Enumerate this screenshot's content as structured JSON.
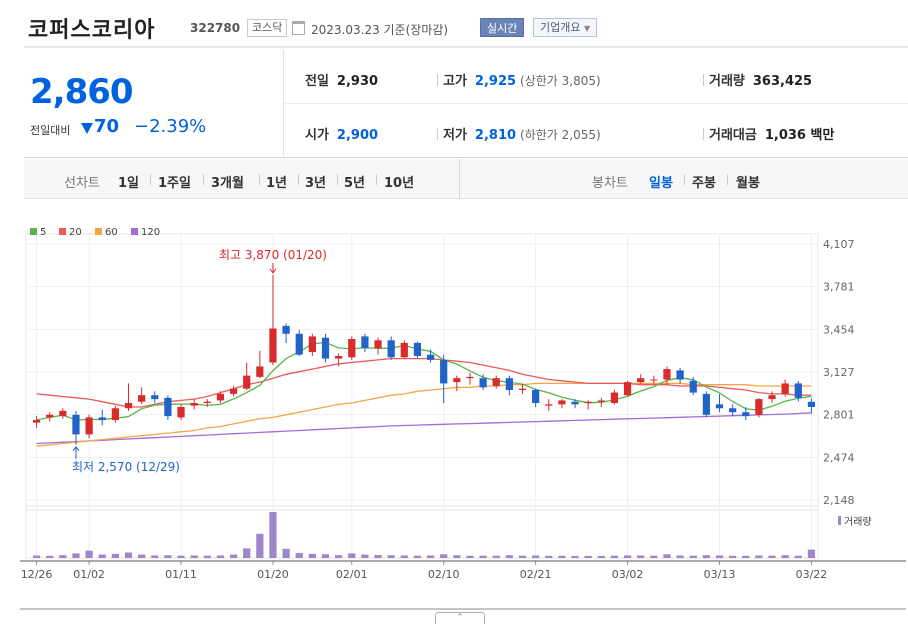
{
  "header": {
    "company": "코퍼스코리아",
    "code": "322780",
    "market": "코스닥",
    "date_text": "2023.03.23 기준(장마감)",
    "realtime_label": "실시간",
    "company_info_label": "기업개요"
  },
  "summary": {
    "price": "2,860",
    "change_label": "전일대비",
    "change_amount": "70",
    "change_percent": "−2.39%",
    "prev_close_label": "전일",
    "prev_close": "2,930",
    "open_label": "시가",
    "open": "2,900",
    "high_label": "고가",
    "high": "2,925",
    "upper_limit": "(상한가 3,805)",
    "low_label": "저가",
    "low": "2,810",
    "lower_limit": "(하한가 2,055)",
    "volume_label": "거래량",
    "volume": "363,425",
    "amount_label": "거래대금",
    "amount": "1,036 백만"
  },
  "period_bar": {
    "line_label": "선차트",
    "line_options": [
      "1일",
      "1주일",
      "3개월",
      "1년",
      "3년",
      "5년",
      "10년"
    ],
    "candle_label": "봉차트",
    "candle_options": [
      "일봉",
      "주봉",
      "월봉"
    ],
    "candle_active": "일봉"
  },
  "colors": {
    "up": "#d92b2b",
    "down": "#2064c9",
    "ma5": "#56b64a",
    "ma20": "#ea5a5a",
    "ma60": "#f5a64a",
    "ma120": "#a36cd9",
    "volume": "#9e86c8"
  },
  "chart_data": {
    "type": "candlestick",
    "legend": [
      {
        "name": "5",
        "color": "#56b64a"
      },
      {
        "name": "20",
        "color": "#ea5a5a"
      },
      {
        "name": "60",
        "color": "#f5a64a"
      },
      {
        "name": "120",
        "color": "#a36cd9"
      }
    ],
    "y_ticks": [
      "4,107",
      "3,781",
      "3,454",
      "3,127",
      "2,801",
      "2,474",
      "2,148"
    ],
    "y_range": [
      2148,
      4107
    ],
    "x_ticks": [
      {
        "label": "12/26",
        "index": 0
      },
      {
        "label": "01/02",
        "index": 4
      },
      {
        "label": "01/11",
        "index": 11
      },
      {
        "label": "01/20",
        "index": 18
      },
      {
        "label": "02/01",
        "index": 24
      },
      {
        "label": "02/10",
        "index": 31
      },
      {
        "label": "02/21",
        "index": 38
      },
      {
        "label": "03/02",
        "index": 45
      },
      {
        "label": "03/13",
        "index": 52
      },
      {
        "label": "03/22",
        "index": 59
      }
    ],
    "annotations": {
      "high_text": "최고 3,870 (01/20)",
      "high_index": 18,
      "high_value": 3870,
      "low_text": "최저 2,570 (12/29)",
      "low_index": 3,
      "low_value": 2570
    },
    "volume_label": "거래량",
    "candles": [
      [
        2740,
        2790,
        2700,
        2760,
        110000
      ],
      [
        2780,
        2820,
        2750,
        2800,
        95000
      ],
      [
        2790,
        2850,
        2770,
        2830,
        120000
      ],
      [
        2800,
        2830,
        2570,
        2650,
        200000
      ],
      [
        2650,
        2800,
        2620,
        2780,
        320000
      ],
      [
        2780,
        2840,
        2720,
        2760,
        150000
      ],
      [
        2760,
        2870,
        2740,
        2850,
        180000
      ],
      [
        2850,
        3040,
        2830,
        2890,
        240000
      ],
      [
        2900,
        3010,
        2880,
        2950,
        150000
      ],
      [
        2950,
        2980,
        2890,
        2920,
        110000
      ],
      [
        2930,
        2950,
        2760,
        2790,
        120000
      ],
      [
        2780,
        2880,
        2760,
        2860,
        100000
      ],
      [
        2870,
        2920,
        2840,
        2890,
        110000
      ],
      [
        2890,
        2920,
        2860,
        2900,
        100000
      ],
      [
        2910,
        2980,
        2890,
        2960,
        110000
      ],
      [
        2960,
        3020,
        2940,
        3000,
        150000
      ],
      [
        3000,
        3200,
        2990,
        3100,
        420000
      ],
      [
        3090,
        3290,
        3080,
        3170,
        1050000
      ],
      [
        3200,
        3870,
        3180,
        3460,
        2000000
      ],
      [
        3480,
        3500,
        3350,
        3420,
        400000
      ],
      [
        3420,
        3450,
        3250,
        3260,
        220000
      ],
      [
        3280,
        3420,
        3250,
        3400,
        180000
      ],
      [
        3390,
        3420,
        3200,
        3230,
        160000
      ],
      [
        3230,
        3270,
        3170,
        3250,
        120000
      ],
      [
        3240,
        3400,
        3220,
        3380,
        200000
      ],
      [
        3400,
        3420,
        3280,
        3310,
        150000
      ],
      [
        3310,
        3390,
        3260,
        3370,
        130000
      ],
      [
        3370,
        3400,
        3220,
        3240,
        120000
      ],
      [
        3240,
        3370,
        3230,
        3350,
        110000
      ],
      [
        3350,
        3360,
        3230,
        3250,
        100000
      ],
      [
        3260,
        3300,
        3200,
        3220,
        110000
      ],
      [
        3220,
        3260,
        2890,
        3040,
        160000
      ],
      [
        3050,
        3100,
        2980,
        3080,
        120000
      ],
      [
        3080,
        3120,
        3030,
        3090,
        100000
      ],
      [
        3080,
        3110,
        2990,
        3010,
        100000
      ],
      [
        3020,
        3100,
        3000,
        3080,
        100000
      ],
      [
        3080,
        3100,
        2950,
        2990,
        120000
      ],
      [
        2990,
        3040,
        2960,
        3000,
        100000
      ],
      [
        2990,
        3000,
        2860,
        2890,
        110000
      ],
      [
        2870,
        2920,
        2830,
        2880,
        95000
      ],
      [
        2880,
        2920,
        2850,
        2910,
        95000
      ],
      [
        2900,
        2920,
        2850,
        2880,
        90000
      ],
      [
        2890,
        2910,
        2840,
        2900,
        90000
      ],
      [
        2900,
        2930,
        2860,
        2910,
        90000
      ],
      [
        2890,
        2990,
        2880,
        2970,
        100000
      ],
      [
        2950,
        3060,
        2940,
        3050,
        110000
      ],
      [
        3050,
        3110,
        3040,
        3080,
        110000
      ],
      [
        3070,
        3100,
        3040,
        3070,
        100000
      ],
      [
        3070,
        3170,
        3030,
        3150,
        160000
      ],
      [
        3140,
        3160,
        3040,
        3070,
        110000
      ],
      [
        3060,
        3090,
        2950,
        2970,
        100000
      ],
      [
        2960,
        2980,
        2780,
        2800,
        120000
      ],
      [
        2880,
        2960,
        2820,
        2850,
        110000
      ],
      [
        2850,
        2880,
        2790,
        2820,
        95000
      ],
      [
        2820,
        2860,
        2760,
        2790,
        95000
      ],
      [
        2800,
        2930,
        2780,
        2920,
        110000
      ],
      [
        2920,
        2980,
        2890,
        2950,
        100000
      ],
      [
        2960,
        3070,
        2940,
        3040,
        120000
      ],
      [
        3040,
        3060,
        2900,
        2930,
        100000
      ],
      [
        2900,
        2925,
        2810,
        2860,
        363425
      ]
    ],
    "ma20": [
      2960,
      2950,
      2940,
      2930,
      2920,
      2900,
      2880,
      2860,
      2860,
      2880,
      2900,
      2910,
      2920,
      2940,
      2970,
      3000,
      3030,
      3050,
      3080,
      3110,
      3130,
      3150,
      3170,
      3190,
      3200,
      3210,
      3220,
      3230,
      3230,
      3230,
      3230,
      3220,
      3210,
      3200,
      3180,
      3160,
      3140,
      3110,
      3090,
      3070,
      3060,
      3050,
      3040,
      3040,
      3040,
      3040,
      3030,
      3030,
      3030,
      3020,
      3020,
      3020,
      3010,
      3000,
      2990,
      2970,
      2960,
      2960,
      2950,
      2950
    ],
    "ma60": [
      2560,
      2570,
      2580,
      2590,
      2600,
      2610,
      2620,
      2630,
      2640,
      2650,
      2660,
      2670,
      2680,
      2700,
      2710,
      2730,
      2750,
      2770,
      2780,
      2800,
      2820,
      2840,
      2860,
      2880,
      2890,
      2910,
      2930,
      2950,
      2960,
      2980,
      2990,
      3000,
      3010,
      3010,
      3020,
      3020,
      3030,
      3030,
      3040,
      3040,
      3040,
      3040,
      3040,
      3040,
      3040,
      3040,
      3040,
      3040,
      3040,
      3040,
      3030,
      3030,
      3030,
      3030,
      3030,
      3020,
      3020,
      3020,
      3020,
      3020
    ],
    "ma120": [
      2580,
      2585,
      2590,
      2595,
      2600,
      2605,
      2610,
      2615,
      2620,
      2625,
      2630,
      2635,
      2640,
      2645,
      2650,
      2655,
      2660,
      2665,
      2670,
      2675,
      2680,
      2685,
      2690,
      2695,
      2700,
      2705,
      2710,
      2715,
      2718,
      2721,
      2724,
      2727,
      2730,
      2733,
      2736,
      2739,
      2742,
      2745,
      2748,
      2751,
      2754,
      2757,
      2760,
      2763,
      2766,
      2769,
      2772,
      2775,
      2778,
      2781,
      2784,
      2787,
      2790,
      2793,
      2796,
      2799,
      2802,
      2805,
      2810,
      2815
    ]
  }
}
